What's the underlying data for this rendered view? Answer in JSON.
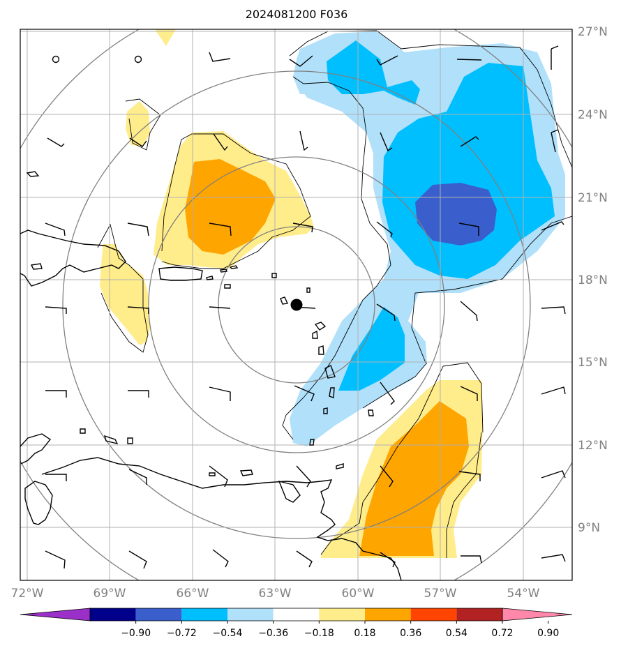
{
  "title": "2024081200 F036",
  "lon_ticks": [
    "72°W",
    "69°W",
    "66°W",
    "63°W",
    "60°W",
    "57°W",
    "54°W"
  ],
  "lat_ticks": [
    "27°N",
    "24°N",
    "21°N",
    "18°N",
    "15°N",
    "12°N",
    "9°N"
  ],
  "colorbar": {
    "labels": [
      "−0.90",
      "−0.72",
      "−0.54",
      "−0.36",
      "−0.18",
      "0.18",
      "0.36",
      "0.54",
      "0.72",
      "0.90"
    ],
    "colors": [
      "#9b30c8",
      "#00008b",
      "#3a5fcd",
      "#00bfff",
      "#b0e0fa",
      "#ffffff",
      "#ffec8b",
      "#ffa500",
      "#ff4500",
      "#b22222",
      "#ff88aa"
    ]
  },
  "center_marker": {
    "lon": -62.3,
    "lat": 17.1
  },
  "shading_colors": {
    "light_yellow": "#ffec8b",
    "orange": "#ffa500",
    "light_blue": "#b0e0fa",
    "deep_sky_blue": "#00bfff",
    "royal_blue": "#3a5fcd"
  }
}
